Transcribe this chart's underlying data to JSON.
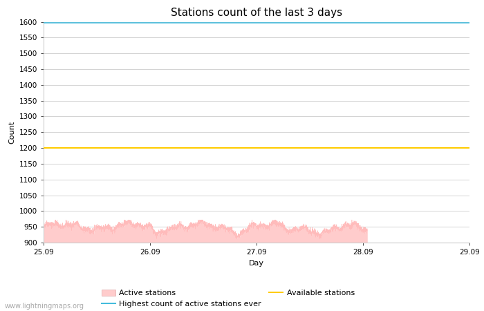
{
  "title": "Stations count of the last 3 days",
  "xlabel": "Day",
  "ylabel": "Count",
  "xlim_start": 0,
  "xlim_end": 96,
  "ylim": [
    900,
    1600
  ],
  "yticks": [
    900,
    950,
    1000,
    1050,
    1100,
    1150,
    1200,
    1250,
    1300,
    1350,
    1400,
    1450,
    1500,
    1550,
    1600
  ],
  "xtick_labels": [
    "25.09",
    "26.09",
    "27.09",
    "28.09",
    "29.09"
  ],
  "xtick_positions": [
    0,
    24,
    48,
    72,
    96
  ],
  "highest_ever": 1597,
  "available_stations": 1200,
  "active_fill_color": "#ffcccc",
  "active_line_color": "#ffbbbb",
  "highest_color": "#44bbdd",
  "available_color": "#ffcc00",
  "background_color": "#ffffff",
  "grid_color": "#cccccc",
  "watermark": "www.lightningmaps.org",
  "title_fontsize": 11,
  "axis_label_fontsize": 8,
  "tick_fontsize": 7.5,
  "watermark_fontsize": 7,
  "legend_fontsize": 8
}
